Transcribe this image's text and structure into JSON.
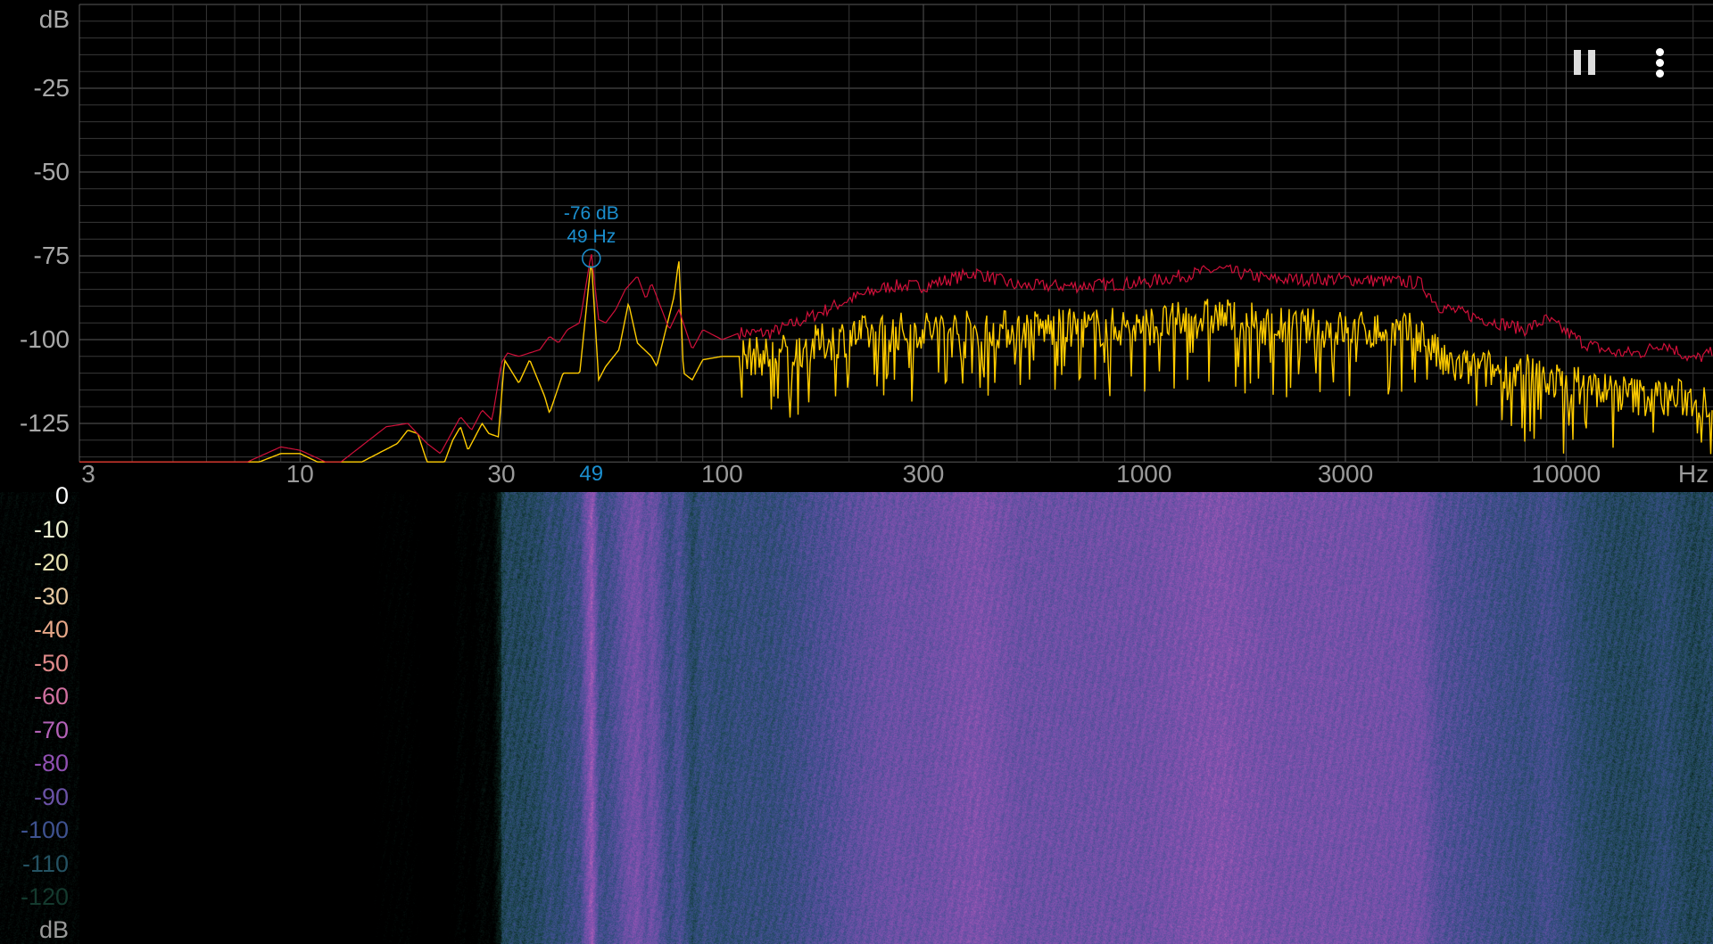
{
  "toolbar": {
    "pause_icon": "pause-icon",
    "menu_icon": "more-vert-icon"
  },
  "chart_data": [
    {
      "type": "line",
      "xlabel_unit": "Hz",
      "ylabel_unit": "dB",
      "x_scale": "log",
      "xlim": [
        3,
        22050
      ],
      "ylim": [
        -136.5,
        0
      ],
      "grid": true,
      "y_ticks": [
        "-25",
        "-50",
        "-75",
        "-100",
        "-125"
      ],
      "y_tick_values": [
        -25,
        -50,
        -75,
        -100,
        -125
      ],
      "x_ticks": [
        "3",
        "10",
        "30",
        "100",
        "300",
        "1000",
        "3000",
        "10000"
      ],
      "x_tick_values": [
        3,
        10,
        30,
        100,
        300,
        1000,
        3000,
        10000
      ],
      "peak": {
        "db_label": "-76 dB",
        "hz_label": "49 Hz",
        "axis_label": "49",
        "hz": 49,
        "db": -76,
        "color": "#1b8fcf"
      },
      "series": [
        {
          "color": "#d0103a",
          "role": "peak-hold",
          "points": [
            [
              3,
              -136.5
            ],
            [
              7.5,
              -136.5
            ],
            [
              9,
              -132
            ],
            [
              10,
              -133
            ],
            [
              11.5,
              -136.5
            ],
            [
              12.5,
              -136.5
            ],
            [
              16,
              -126
            ],
            [
              18,
              -125
            ],
            [
              20,
              -131
            ],
            [
              21.5,
              -134
            ],
            [
              24,
              -123
            ],
            [
              25.5,
              -127
            ],
            [
              27,
              -121
            ],
            [
              28.5,
              -124
            ],
            [
              30,
              -107
            ],
            [
              31,
              -104
            ],
            [
              33,
              -105
            ],
            [
              37,
              -103
            ],
            [
              39,
              -99
            ],
            [
              41,
              -101
            ],
            [
              43,
              -97
            ],
            [
              46,
              -95
            ],
            [
              49,
              -74
            ],
            [
              51,
              -94
            ],
            [
              53,
              -95
            ],
            [
              56,
              -91
            ],
            [
              59,
              -85
            ],
            [
              63,
              -81
            ],
            [
              66,
              -88
            ],
            [
              68,
              -83
            ],
            [
              75,
              -97
            ],
            [
              79,
              -91
            ],
            [
              85,
              -103
            ],
            [
              90,
              -97
            ],
            [
              100,
              -100
            ],
            [
              110,
              -98
            ],
            [
              130,
              -98
            ],
            [
              150,
              -95
            ],
            [
              200,
              -88
            ],
            [
              250,
              -84
            ],
            [
              300,
              -84
            ],
            [
              400,
              -80
            ],
            [
              500,
              -84
            ],
            [
              700,
              -84
            ],
            [
              1000,
              -83
            ],
            [
              1500,
              -79
            ],
            [
              2000,
              -82
            ],
            [
              3000,
              -82
            ],
            [
              4500,
              -83
            ],
            [
              5000,
              -90
            ],
            [
              6000,
              -93
            ],
            [
              8000,
              -97
            ],
            [
              9000,
              -94
            ],
            [
              11000,
              -101
            ],
            [
              13000,
              -104
            ],
            [
              15000,
              -104
            ],
            [
              17000,
              -101
            ],
            [
              20000,
              -106
            ],
            [
              22050,
              -104
            ]
          ]
        },
        {
          "color": "#ffcc00",
          "role": "current",
          "points": [
            [
              3,
              -136.5
            ],
            [
              8,
              -136.5
            ],
            [
              9,
              -134
            ],
            [
              10,
              -134
            ],
            [
              11,
              -136.5
            ],
            [
              14,
              -136.5
            ],
            [
              17,
              -131
            ],
            [
              18,
              -127
            ],
            [
              19,
              -128
            ],
            [
              20,
              -136.5
            ],
            [
              22,
              -136.5
            ],
            [
              23,
              -130
            ],
            [
              24,
              -126
            ],
            [
              25,
              -133
            ],
            [
              27,
              -125
            ],
            [
              28,
              -128
            ],
            [
              29.5,
              -129
            ],
            [
              30.5,
              -106
            ],
            [
              33,
              -113
            ],
            [
              35,
              -106
            ],
            [
              38,
              -117
            ],
            [
              39,
              -122
            ],
            [
              42,
              -110
            ],
            [
              46,
              -110
            ],
            [
              49,
              -76
            ],
            [
              51,
              -112
            ],
            [
              53,
              -108
            ],
            [
              57,
              -103
            ],
            [
              60,
              -89
            ],
            [
              63,
              -101
            ],
            [
              68,
              -105
            ],
            [
              70,
              -108
            ],
            [
              77,
              -87
            ],
            [
              79,
              -76
            ],
            [
              81,
              -110
            ],
            [
              85,
              -112
            ],
            [
              90,
              -106
            ],
            [
              100,
              -105
            ],
            [
              130,
              -105
            ],
            [
              200,
              -99
            ],
            [
              300,
              -97
            ],
            [
              500,
              -97
            ],
            [
              1000,
              -96
            ],
            [
              1500,
              -93
            ],
            [
              2000,
              -96
            ],
            [
              3000,
              -97
            ],
            [
              4500,
              -98
            ],
            [
              5200,
              -108
            ],
            [
              8000,
              -110
            ],
            [
              10000,
              -113
            ],
            [
              15000,
              -117
            ],
            [
              22050,
              -118
            ]
          ]
        }
      ]
    },
    {
      "type": "heatmap",
      "color_scale_unit": "dB",
      "color_scale": [
        {
          "label": "0",
          "color": "#ffffff"
        },
        {
          "label": "-10",
          "color": "#eef2d2"
        },
        {
          "label": "-20",
          "color": "#e6e2b0"
        },
        {
          "label": "-30",
          "color": "#e6c8a0"
        },
        {
          "label": "-40",
          "color": "#e8a888"
        },
        {
          "label": "-50",
          "color": "#e08a8a"
        },
        {
          "label": "-60",
          "color": "#d070a0"
        },
        {
          "label": "-70",
          "color": "#b462b8"
        },
        {
          "label": "-80",
          "color": "#9050b2"
        },
        {
          "label": "-90",
          "color": "#6a52a6"
        },
        {
          "label": "-100",
          "color": "#3e5290"
        },
        {
          "label": "-110",
          "color": "#245262"
        },
        {
          "label": "-120",
          "color": "#143a2e"
        }
      ]
    }
  ]
}
